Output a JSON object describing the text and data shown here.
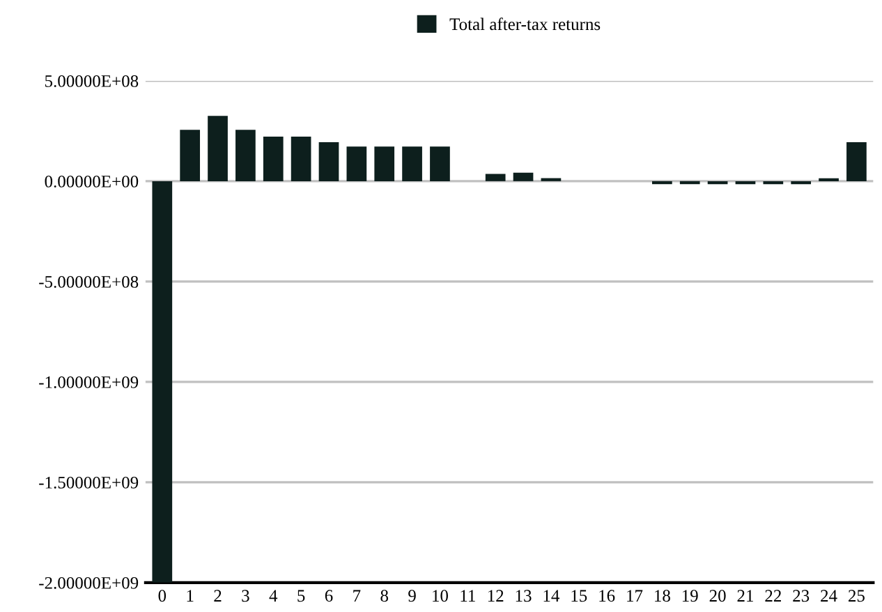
{
  "chart_data": {
    "type": "bar",
    "categories": [
      "0",
      "1",
      "2",
      "3",
      "4",
      "5",
      "6",
      "7",
      "8",
      "9",
      "10",
      "11",
      "12",
      "13",
      "14",
      "15",
      "16",
      "17",
      "18",
      "19",
      "20",
      "21",
      "22",
      "23",
      "24",
      "25"
    ],
    "series": [
      {
        "name": "Total after-tax returns",
        "color": "#0d1f1d",
        "values": [
          -2000000000,
          256000000,
          325000000,
          256000000,
          222000000,
          222000000,
          194000000,
          172000000,
          172000000,
          172000000,
          172000000,
          0,
          36000000,
          42000000,
          15000000,
          0,
          0,
          0,
          -15000000,
          -15000000,
          -15000000,
          -15000000,
          -15000000,
          -15000000,
          14000000,
          194000000
        ]
      }
    ],
    "ylim": [
      -2000000000,
      500000000
    ],
    "yticks": [
      {
        "value": 500000000,
        "label": "5.00000E+08"
      },
      {
        "value": 0,
        "label": "0.00000E+00"
      },
      {
        "value": -500000000,
        "label": "-5.00000E+08"
      },
      {
        "value": -1000000000,
        "label": "-1.00000E+09"
      },
      {
        "value": -1500000000,
        "label": "-1.50000E+09"
      },
      {
        "value": -2000000000,
        "label": "-2.00000E+09"
      }
    ],
    "grid": "y",
    "legend": "top"
  }
}
